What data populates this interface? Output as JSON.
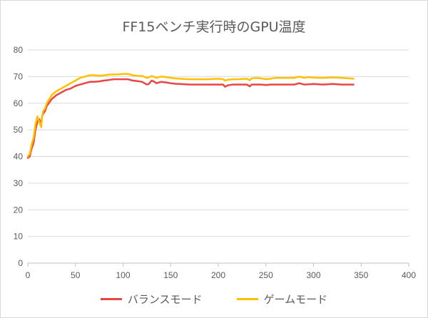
{
  "chart_data": {
    "type": "line",
    "title": "FF15ベンチ実行時のGPU温度",
    "xlabel": "",
    "ylabel": "",
    "xlim": [
      0,
      400
    ],
    "ylim": [
      0,
      80
    ],
    "xticks": [
      0,
      50,
      100,
      150,
      200,
      250,
      300,
      350,
      400
    ],
    "yticks": [
      0,
      10,
      20,
      30,
      40,
      50,
      60,
      70,
      80
    ],
    "grid": "horizontal",
    "legend": "bottom",
    "series": [
      {
        "name": "バランスモード",
        "color": "#e84545",
        "x": [
          0,
          2,
          4,
          6,
          8,
          10,
          12,
          14,
          15,
          16,
          18,
          20,
          25,
          30,
          35,
          40,
          45,
          50,
          55,
          60,
          65,
          70,
          75,
          80,
          85,
          90,
          95,
          100,
          105,
          110,
          115,
          120,
          125,
          127,
          130,
          133,
          135,
          140,
          145,
          150,
          155,
          160,
          170,
          180,
          190,
          200,
          205,
          207,
          210,
          215,
          220,
          230,
          233,
          235,
          240,
          245,
          250,
          255,
          260,
          270,
          280,
          285,
          290,
          295,
          300,
          310,
          320,
          330,
          342
        ],
        "values": [
          39.5,
          40,
          43,
          45,
          50,
          53,
          54,
          52,
          55,
          56,
          57,
          59,
          61.5,
          63,
          64,
          65,
          65.5,
          66.5,
          67,
          67.5,
          68,
          68,
          68.2,
          68.5,
          68.7,
          69,
          69,
          69,
          69,
          68.5,
          68.3,
          68,
          67,
          67.2,
          68.5,
          68,
          67.5,
          68,
          67.8,
          67.5,
          67.3,
          67.2,
          67,
          67,
          67,
          67,
          67,
          66.2,
          66.7,
          67,
          67,
          67,
          66.3,
          67,
          67,
          67,
          66.8,
          67,
          67,
          67,
          67,
          67.5,
          67,
          67.1,
          67.2,
          67,
          67.2,
          67,
          67
        ]
      },
      {
        "name": "ゲームモード",
        "color": "#ffc000",
        "x": [
          0,
          2,
          4,
          6,
          8,
          10,
          12,
          14,
          15,
          16,
          18,
          20,
          25,
          30,
          35,
          40,
          45,
          50,
          55,
          60,
          65,
          70,
          75,
          80,
          85,
          90,
          95,
          100,
          105,
          110,
          115,
          120,
          125,
          127,
          130,
          133,
          135,
          140,
          145,
          150,
          155,
          160,
          170,
          180,
          190,
          200,
          205,
          207,
          210,
          215,
          220,
          230,
          233,
          235,
          240,
          245,
          250,
          255,
          260,
          270,
          280,
          285,
          290,
          295,
          300,
          310,
          320,
          330,
          342
        ],
        "values": [
          40,
          41,
          44.5,
          47,
          52,
          55,
          53,
          51,
          55,
          57,
          58,
          60,
          63,
          64.5,
          65.5,
          66.5,
          67.5,
          68.5,
          69.5,
          70,
          70.5,
          70.5,
          70.3,
          70.5,
          70.7,
          70.8,
          70.8,
          71,
          71,
          70.5,
          70.3,
          70.2,
          69.5,
          69.7,
          70.2,
          69.8,
          69.5,
          70,
          69.8,
          69.5,
          69.3,
          69.2,
          69,
          69,
          69,
          69.2,
          69,
          68.5,
          68.8,
          69,
          69,
          69.2,
          68.6,
          69.3,
          69.5,
          69.3,
          69,
          69.2,
          69.5,
          69.5,
          69.5,
          70,
          69.5,
          69.8,
          69.6,
          69.5,
          69.7,
          69.5,
          69.2
        ]
      }
    ]
  }
}
